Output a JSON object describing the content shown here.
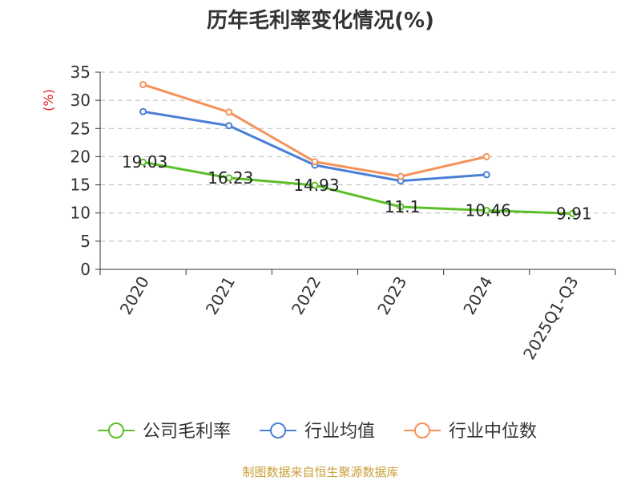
{
  "chart_data": {
    "type": "line",
    "title": "历年毛利率变化情况(%)",
    "ylabel": "(%)",
    "ylim": [
      0,
      35
    ],
    "yticks": [
      0,
      5,
      10,
      15,
      20,
      25,
      30,
      35
    ],
    "categories": [
      "2020",
      "2021",
      "2022",
      "2023",
      "2024",
      "2025Q1-Q3"
    ],
    "grid": "horizontal-dashed",
    "legend_position": "bottom",
    "series": [
      {
        "name": "公司毛利率",
        "color": "#5cbf2a",
        "values": [
          19.03,
          16.23,
          14.93,
          11.1,
          10.46,
          9.91
        ],
        "labels": [
          "19.03",
          "16.23",
          "14.93",
          "11.1",
          "10.46",
          "9.91"
        ]
      },
      {
        "name": "行业均值",
        "color": "#4a7fd6",
        "values": [
          28,
          25.5,
          18.5,
          15.7,
          16.8,
          null
        ]
      },
      {
        "name": "行业中位数",
        "color": "#f5925a",
        "values": [
          32.8,
          27.9,
          19.1,
          16.5,
          20,
          null
        ]
      }
    ]
  },
  "source_text": "制图数据来自恒生聚源数据库"
}
